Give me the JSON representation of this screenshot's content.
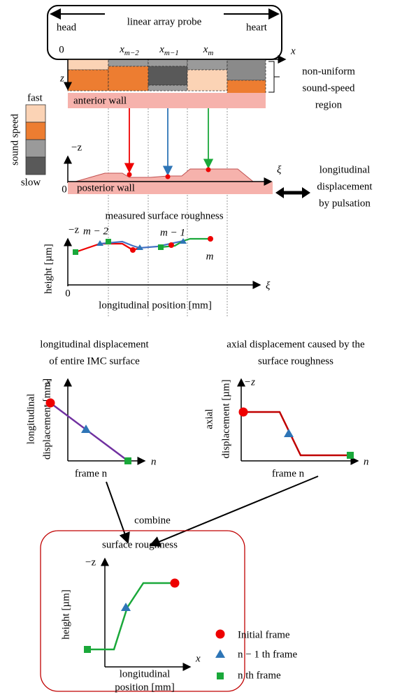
{
  "probe": {
    "head": "head",
    "title": "linear array probe",
    "heart": "heart",
    "origin": "0",
    "x_axis": "x",
    "z_axis": "z",
    "elements": [
      {
        "base": "x",
        "sub": "m−2"
      },
      {
        "base": "x",
        "sub": "m−1"
      },
      {
        "base": "x",
        "sub": "m"
      }
    ]
  },
  "region": {
    "lines": [
      "non-uniform",
      "sound-speed",
      "region"
    ],
    "anterior_wall": "anterior wall"
  },
  "sound_speed_legend": {
    "title": "sound speed",
    "fast": "fast",
    "slow": "slow"
  },
  "posterior": {
    "neg_z": "−z",
    "xi": "ξ",
    "origin": "0",
    "wall": "posterior wall",
    "pulsation": [
      "longitudinal",
      "displacement",
      "by pulsation"
    ]
  },
  "measured": {
    "title": "measured surface roughness",
    "neg_z": "−z",
    "labels": [
      "m − 2",
      "m − 1",
      "m"
    ],
    "y_label": "height [µm]",
    "origin": "0",
    "xi": "ξ",
    "x_label": "longitudinal position [mm]"
  },
  "longitudinal_plot": {
    "title": [
      "longitudinal displacement",
      "of entire IMC surface"
    ],
    "y_axis": "x",
    "y_label": [
      "longitudinal",
      "displacement [mm]"
    ],
    "x_axis": "n",
    "x_label": "frame n"
  },
  "axial_plot": {
    "title": [
      "axial displacement caused by the",
      "surface roughness"
    ],
    "y_axis": "−z",
    "y_label": [
      "axial",
      "displacement [µm]"
    ],
    "x_axis": "n",
    "x_label": "frame n"
  },
  "combine": "combine",
  "result": {
    "title": "surface roughness",
    "y_axis": "−z",
    "y_label": "height [µm]",
    "x_axis": "x",
    "x_label": [
      "longitudinal",
      "position [mm]"
    ]
  },
  "legend": [
    "Initial frame",
    "n − 1 th frame",
    "n th frame"
  ]
}
